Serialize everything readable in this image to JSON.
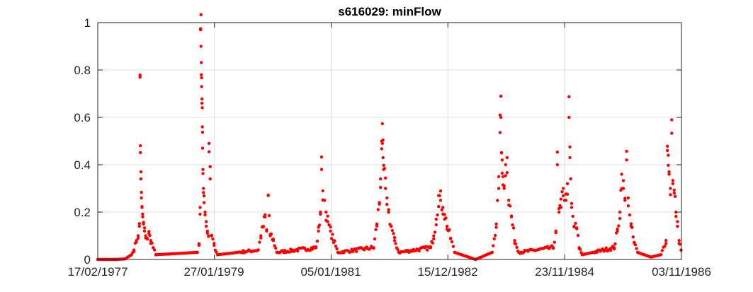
{
  "chart_data": {
    "type": "scatter",
    "title": "s616029: minFlow",
    "xlabel": "",
    "ylabel": "",
    "ylim": [
      0,
      1
    ],
    "xlim": [
      "17/02/1977",
      "03/11/1986"
    ],
    "grid": true,
    "legend": "none",
    "marker_color": "#ff0000",
    "y_ticks": [
      "0",
      "0.2",
      "0.4",
      "0.6",
      "0.8",
      "1"
    ],
    "x_ticks": [
      "17/02/1977",
      "27/01/1979",
      "05/01/1981",
      "15/12/1982",
      "23/11/1984",
      "03/11/1986"
    ],
    "series": [
      {
        "points": [
          [
            "1977-04-15",
            0.0
          ],
          [
            "1977-06-01",
            0.0
          ],
          [
            "1977-08-01",
            0.002
          ],
          [
            "1977-09-10",
            0.02
          ],
          [
            "1977-09-25",
            0.04
          ],
          [
            "1977-10-10",
            0.08
          ],
          [
            "1977-10-20",
            0.1
          ],
          [
            "1977-10-28",
            0.14
          ],
          [
            "1977-11-01",
            0.77
          ],
          [
            "1977-11-03",
            0.48
          ],
          [
            "1977-11-06",
            0.34
          ],
          [
            "1977-11-09",
            0.26
          ],
          [
            "1977-11-13",
            0.22
          ],
          [
            "1977-11-17",
            0.18
          ],
          [
            "1977-11-22",
            0.15
          ],
          [
            "1977-11-28",
            0.12
          ],
          [
            "1977-12-05",
            0.1
          ],
          [
            "1977-12-15",
            0.09
          ],
          [
            "1977-12-25",
            0.11
          ],
          [
            "1978-01-05",
            0.08
          ],
          [
            "1978-01-20",
            0.05
          ],
          [
            "1978-02-05",
            0.02
          ],
          [
            "1978-10-15",
            0.03
          ],
          [
            "1978-10-25",
            0.06
          ],
          [
            "1978-11-01",
            0.22
          ],
          [
            "1978-11-04",
            0.97
          ],
          [
            "1978-11-06",
            0.9
          ],
          [
            "1978-11-08",
            0.78
          ],
          [
            "1978-11-10",
            0.73
          ],
          [
            "1978-11-12",
            0.66
          ],
          [
            "1978-11-14",
            0.56
          ],
          [
            "1978-11-16",
            0.47
          ],
          [
            "1978-11-18",
            0.38
          ],
          [
            "1978-11-21",
            0.3
          ],
          [
            "1978-11-25",
            0.24
          ],
          [
            "1978-12-01",
            0.2
          ],
          [
            "1978-12-08",
            0.16
          ],
          [
            "1978-12-15",
            0.12
          ],
          [
            "1978-12-22",
            0.1
          ],
          [
            "1978-12-25",
            0.49
          ],
          [
            "1979-01-01",
            0.34
          ],
          [
            "1979-01-10",
            0.1
          ],
          [
            "1979-01-25",
            0.06
          ],
          [
            "1979-02-15",
            0.02
          ],
          [
            "1979-10-20",
            0.04
          ],
          [
            "1979-11-05",
            0.1
          ],
          [
            "1979-11-20",
            0.14
          ],
          [
            "1979-12-01",
            0.18
          ],
          [
            "1979-12-10",
            0.12
          ],
          [
            "1979-12-20",
            0.27
          ],
          [
            "1980-01-01",
            0.1
          ],
          [
            "1980-01-20",
            0.08
          ],
          [
            "1980-02-10",
            0.03
          ],
          [
            "1980-10-05",
            0.05
          ],
          [
            "1980-10-20",
            0.12
          ],
          [
            "1980-11-01",
            0.2
          ],
          [
            "1980-11-08",
            0.38
          ],
          [
            "1980-11-15",
            0.29
          ],
          [
            "1980-11-25",
            0.25
          ],
          [
            "1980-12-05",
            0.2
          ],
          [
            "1980-12-15",
            0.16
          ],
          [
            "1981-01-01",
            0.12
          ],
          [
            "1981-01-20",
            0.08
          ],
          [
            "1981-02-15",
            0.03
          ],
          [
            "1981-09-20",
            0.05
          ],
          [
            "1981-10-10",
            0.15
          ],
          [
            "1981-10-25",
            0.24
          ],
          [
            "1981-11-01",
            0.34
          ],
          [
            "1981-11-08",
            0.5
          ],
          [
            "1981-11-12",
            0.49
          ],
          [
            "1981-11-16",
            0.43
          ],
          [
            "1981-11-20",
            0.38
          ],
          [
            "1981-12-01",
            0.3
          ],
          [
            "1981-12-10",
            0.26
          ],
          [
            "1981-12-20",
            0.2
          ],
          [
            "1982-01-05",
            0.14
          ],
          [
            "1982-01-25",
            0.08
          ],
          [
            "1982-02-20",
            0.03
          ],
          [
            "1982-09-01",
            0.05
          ],
          [
            "1982-09-20",
            0.1
          ],
          [
            "1982-10-05",
            0.17
          ],
          [
            "1982-10-20",
            0.27
          ],
          [
            "1982-11-01",
            0.25
          ],
          [
            "1982-11-15",
            0.22
          ],
          [
            "1982-11-25",
            0.19
          ],
          [
            "1982-12-10",
            0.14
          ],
          [
            "1983-01-01",
            0.09
          ],
          [
            "1983-01-25",
            0.03
          ],
          [
            "1983-06-01",
            0.0
          ],
          [
            "1983-09-10",
            0.03
          ],
          [
            "1983-10-05",
            0.15
          ],
          [
            "1983-10-20",
            0.3
          ],
          [
            "1983-10-28",
            0.61
          ],
          [
            "1983-11-02",
            0.6
          ],
          [
            "1983-11-06",
            0.45
          ],
          [
            "1983-11-10",
            0.42
          ],
          [
            "1983-11-15",
            0.35
          ],
          [
            "1983-11-22",
            0.3
          ],
          [
            "1983-12-01",
            0.4
          ],
          [
            "1983-12-10",
            0.43
          ],
          [
            "1983-12-20",
            0.25
          ],
          [
            "1984-01-05",
            0.18
          ],
          [
            "1984-01-25",
            0.08
          ],
          [
            "1984-02-20",
            0.03
          ],
          [
            "1984-09-15",
            0.05
          ],
          [
            "1984-10-01",
            0.12
          ],
          [
            "1984-10-10",
            0.4
          ],
          [
            "1984-10-20",
            0.2
          ],
          [
            "1984-11-01",
            0.22
          ],
          [
            "1984-11-15",
            0.3
          ],
          [
            "1984-12-01",
            0.25
          ],
          [
            "1984-12-10",
            0.32
          ],
          [
            "1984-12-20",
            0.6
          ],
          [
            "1984-12-25",
            0.43
          ],
          [
            "1985-01-05",
            0.22
          ],
          [
            "1985-01-20",
            0.14
          ],
          [
            "1985-02-05",
            0.13
          ],
          [
            "1985-02-20",
            0.05
          ],
          [
            "1985-03-10",
            0.02
          ],
          [
            "1985-09-20",
            0.05
          ],
          [
            "1985-10-10",
            0.12
          ],
          [
            "1985-10-25",
            0.2
          ],
          [
            "1985-11-05",
            0.36
          ],
          [
            "1985-11-15",
            0.3
          ],
          [
            "1985-11-25",
            0.25
          ],
          [
            "1985-12-05",
            0.42
          ],
          [
            "1985-12-15",
            0.26
          ],
          [
            "1986-01-01",
            0.14
          ],
          [
            "1986-01-20",
            0.07
          ],
          [
            "1986-02-10",
            0.03
          ],
          [
            "1986-05-01",
            0.01
          ],
          [
            "1986-07-01",
            0.02
          ],
          [
            "1986-08-01",
            0.08
          ],
          [
            "1986-08-10",
            0.46
          ],
          [
            "1986-08-15",
            0.44
          ],
          [
            "1986-08-20",
            0.36
          ],
          [
            "1986-08-28",
            0.3
          ],
          [
            "1986-09-05",
            0.59
          ],
          [
            "1986-09-12",
            0.32
          ],
          [
            "1986-09-20",
            0.28
          ],
          [
            "1986-10-01",
            0.2
          ],
          [
            "1986-10-10",
            0.14
          ],
          [
            "1986-10-20",
            0.08
          ],
          [
            "1986-11-01",
            0.04
          ]
        ]
      }
    ]
  }
}
